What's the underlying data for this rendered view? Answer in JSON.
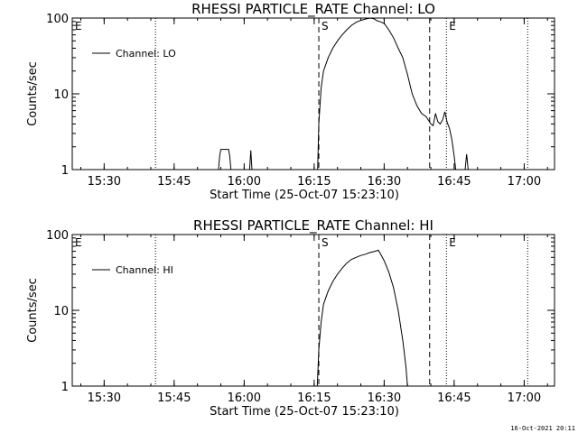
{
  "footer": {
    "timestamp": "16-Oct-2021 20:11"
  },
  "chart_data": [
    {
      "type": "line",
      "title": "RHESSI PARTICLE_RATE Channel: LO",
      "xlabel": "Start Time (25-Oct-07 15:23:10)",
      "ylabel": "Counts/sec",
      "y_scale": "log",
      "xlim": [
        "15:23:10",
        "17:06:30"
      ],
      "ylim": [
        1,
        100
      ],
      "x_ticks": [
        "15:30",
        "15:45",
        "16:00",
        "16:15",
        "16:30",
        "16:45",
        "17:00"
      ],
      "y_ticks": [
        "1",
        "10",
        "100"
      ],
      "legend": {
        "entries": [
          "Channel: LO"
        ],
        "position": "top-left"
      },
      "markers": [
        {
          "label": "E",
          "time": "15:23:10",
          "style": "dotted"
        },
        {
          "label": "",
          "time": "15:41:00",
          "style": "dotted"
        },
        {
          "label": "S",
          "time": "16:16:00",
          "style": "dashed"
        },
        {
          "label": "",
          "time": "16:39:45",
          "style": "dashed"
        },
        {
          "label": "E",
          "time": "16:43:20",
          "style": "dotted"
        },
        {
          "label": "",
          "time": "17:00:45",
          "style": "dotted"
        }
      ],
      "series": [
        {
          "name": "Channel: LO",
          "segments": [
            {
              "x": [
                "15:54:30",
                "15:54:45",
                "15:55:00",
                "15:56:40",
                "15:56:55",
                "15:57:10"
              ],
              "y": [
                1,
                1.5,
                1.85,
                1.85,
                1.5,
                1
              ]
            },
            {
              "x": [
                "16:01:10",
                "16:01:25",
                "16:01:40"
              ],
              "y": [
                1,
                1.8,
                1
              ]
            },
            {
              "x": [
                "16:15:45",
                "16:16:00",
                "16:16:30",
                "16:17:00",
                "16:18:00",
                "16:19:00",
                "16:20:00",
                "16:21:00",
                "16:22:00",
                "16:23:00",
                "16:24:00",
                "16:25:00",
                "16:26:00",
                "16:27:00",
                "16:27:45",
                "16:28:30",
                "16:29:00",
                "16:30:00",
                "16:31:00",
                "16:32:00",
                "16:33:00",
                "16:34:00",
                "16:35:00",
                "16:36:00",
                "16:37:00",
                "16:38:00",
                "16:39:00",
                "16:40:00",
                "16:40:30",
                "16:41:00",
                "16:41:30",
                "16:42:00",
                "16:42:30",
                "16:43:00",
                "16:43:30",
                "16:44:00",
                "16:44:30",
                "16:45:00",
                "16:45:20"
              ],
              "y": [
                1,
                4,
                12,
                20,
                30,
                40,
                50,
                60,
                70,
                80,
                88,
                93,
                97,
                100,
                98,
                92,
                90,
                85,
                70,
                55,
                40,
                30,
                18,
                10,
                7,
                5.5,
                5,
                4,
                3.8,
                5.5,
                4.3,
                4.0,
                4.5,
                5.8,
                4.2,
                3.5,
                2.5,
                1.5,
                1
              ]
            },
            {
              "x": [
                "16:47:20",
                "16:47:40",
                "16:48:00"
              ],
              "y": [
                1,
                1.6,
                1
              ]
            }
          ]
        }
      ]
    },
    {
      "type": "line",
      "title": "RHESSI PARTICLE_RATE Channel: HI",
      "xlabel": "Start Time (25-Oct-07 15:23:10)",
      "ylabel": "Counts/sec",
      "y_scale": "log",
      "xlim": [
        "15:23:10",
        "17:06:30"
      ],
      "ylim": [
        1,
        100
      ],
      "x_ticks": [
        "15:30",
        "15:45",
        "16:00",
        "16:15",
        "16:30",
        "16:45",
        "17:00"
      ],
      "y_ticks": [
        "1",
        "10",
        "100"
      ],
      "legend": {
        "entries": [
          "Channel: HI"
        ],
        "position": "top-left"
      },
      "markers": [
        {
          "label": "E",
          "time": "15:23:10",
          "style": "dotted"
        },
        {
          "label": "",
          "time": "15:41:00",
          "style": "dotted"
        },
        {
          "label": "S",
          "time": "16:16:00",
          "style": "dashed"
        },
        {
          "label": "",
          "time": "16:39:45",
          "style": "dashed"
        },
        {
          "label": "E",
          "time": "16:43:20",
          "style": "dotted"
        },
        {
          "label": "",
          "time": "17:00:45",
          "style": "dotted"
        }
      ],
      "series": [
        {
          "name": "Channel: HI",
          "segments": [
            {
              "x": [
                "16:15:40",
                "16:16:00",
                "16:16:30",
                "16:17:00",
                "16:18:00",
                "16:19:00",
                "16:20:00",
                "16:21:00",
                "16:22:00",
                "16:23:00",
                "16:24:00",
                "16:25:00",
                "16:26:00",
                "16:27:00",
                "16:28:00",
                "16:28:45",
                "16:29:15",
                "16:30:00",
                "16:31:00",
                "16:32:00",
                "16:33:00",
                "16:34:00",
                "16:34:40",
                "16:35:00"
              ],
              "y": [
                1,
                3,
                7,
                12,
                18,
                24,
                30,
                36,
                42,
                47,
                50,
                53,
                55,
                58,
                60,
                62,
                55,
                45,
                32,
                20,
                10,
                4,
                1.8,
                1
              ]
            }
          ]
        }
      ]
    }
  ]
}
